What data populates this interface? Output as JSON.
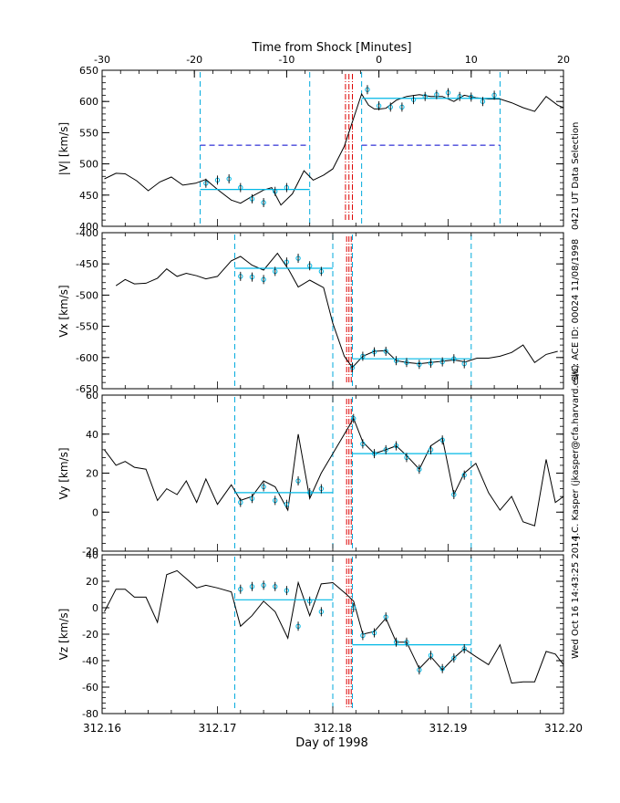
{
  "chart_data": {
    "type": "line",
    "top_axis": {
      "label": "Time from Shock [Minutes]",
      "range": [
        -30,
        20
      ],
      "ticks": [
        -30,
        -20,
        -10,
        0,
        10,
        20
      ]
    },
    "x_axis": {
      "label": "Day of 1998",
      "range": [
        312.16,
        312.2
      ],
      "ticks": [
        "312.16",
        "312.17",
        "312.18",
        "312.19",
        "312.20"
      ],
      "minor_step": 0.002
    },
    "side_labels": [
      "0421 UT Data Selection",
      "S/C: ACE ID: 00024 11/08/1998",
      "J.C. Kasper (jkasper@cfa.harvard.edu)",
      "Wed Oct 16 14:43:25 2014"
    ],
    "colors": {
      "data": "#000000",
      "fit": "#00b8e6",
      "window": "#00aadd",
      "shock": "#dd0000",
      "selection": "#0000cc"
    },
    "panels": [
      {
        "ylabel": "|V| [km/s]",
        "ylim": [
          400,
          650
        ],
        "yticks": [
          400,
          450,
          500,
          550,
          600,
          650
        ],
        "line": [
          [
            312.1602,
            476
          ],
          [
            312.1612,
            485
          ],
          [
            312.162,
            484
          ],
          [
            312.163,
            473
          ],
          [
            312.164,
            457
          ],
          [
            312.165,
            471
          ],
          [
            312.166,
            479
          ],
          [
            312.167,
            466
          ],
          [
            312.1681,
            469
          ],
          [
            312.169,
            475
          ],
          [
            312.17,
            459
          ],
          [
            312.1712,
            442
          ],
          [
            312.172,
            437
          ],
          [
            312.173,
            448
          ],
          [
            312.174,
            458
          ],
          [
            312.1747,
            462
          ],
          [
            312.1755,
            434
          ],
          [
            312.1765,
            452
          ],
          [
            312.1775,
            489
          ],
          [
            312.1783,
            474
          ],
          [
            312.1792,
            482
          ],
          [
            312.18,
            492
          ],
          [
            312.181,
            528
          ],
          [
            312.1825,
            612
          ],
          [
            312.1831,
            594
          ],
          [
            312.1836,
            588
          ],
          [
            312.1841,
            588
          ],
          [
            312.1846,
            589
          ],
          [
            312.1855,
            602
          ],
          [
            312.1864,
            608
          ],
          [
            312.1875,
            611
          ],
          [
            312.1885,
            608
          ],
          [
            312.1895,
            608
          ],
          [
            312.1905,
            600
          ],
          [
            312.1914,
            610
          ],
          [
            312.1924,
            606
          ],
          [
            312.1935,
            604
          ],
          [
            312.1945,
            604
          ],
          [
            312.1955,
            598
          ],
          [
            312.1965,
            590
          ],
          [
            312.1975,
            584
          ],
          [
            312.1985,
            608
          ],
          [
            312.1995,
            594
          ],
          [
            312.2,
            590
          ]
        ],
        "points": [
          [
            312.169,
            469
          ],
          [
            312.17,
            474
          ],
          [
            312.171,
            476
          ],
          [
            312.172,
            462
          ],
          [
            312.173,
            444
          ],
          [
            312.174,
            438
          ],
          [
            312.175,
            456
          ],
          [
            312.176,
            462
          ],
          [
            312.183,
            619
          ],
          [
            312.184,
            593
          ],
          [
            312.185,
            591
          ],
          [
            312.186,
            591
          ],
          [
            312.187,
            603
          ],
          [
            312.188,
            608
          ],
          [
            312.189,
            611
          ],
          [
            312.19,
            614
          ],
          [
            312.191,
            608
          ],
          [
            312.192,
            607
          ],
          [
            312.193,
            600
          ],
          [
            312.194,
            610
          ]
        ],
        "fits": [
          [
            312.1685,
            312.178,
            459
          ],
          [
            312.1825,
            312.1945,
            605
          ]
        ],
        "selection": [
          [
            312.1685,
            312.178,
            530
          ],
          [
            312.1825,
            312.1945,
            530
          ]
        ],
        "windows": [
          312.1685,
          312.178,
          312.1825,
          312.1945
        ],
        "shock": [
          312.1811,
          312.1814,
          312.1817
        ]
      },
      {
        "ylabel": "Vx [km/s]",
        "ylim": [
          -650,
          -400
        ],
        "yticks": [
          -650,
          -600,
          -550,
          -500,
          -450,
          -400
        ],
        "line": [
          [
            312.1612,
            -485
          ],
          [
            312.162,
            -475
          ],
          [
            312.1628,
            -482
          ],
          [
            312.1638,
            -481
          ],
          [
            312.1648,
            -473
          ],
          [
            312.1656,
            -458
          ],
          [
            312.1665,
            -470
          ],
          [
            312.1673,
            -465
          ],
          [
            312.1682,
            -469
          ],
          [
            312.169,
            -474
          ],
          [
            312.17,
            -470
          ],
          [
            312.1712,
            -445
          ],
          [
            312.172,
            -438
          ],
          [
            312.173,
            -452
          ],
          [
            312.174,
            -460
          ],
          [
            312.1752,
            -433
          ],
          [
            312.1762,
            -460
          ],
          [
            312.177,
            -487
          ],
          [
            312.178,
            -476
          ],
          [
            312.1792,
            -488
          ],
          [
            312.18,
            -545
          ],
          [
            312.181,
            -598
          ],
          [
            312.1817,
            -616
          ],
          [
            312.1826,
            -598
          ],
          [
            312.1836,
            -590
          ],
          [
            312.1846,
            -589
          ],
          [
            312.1855,
            -605
          ],
          [
            312.1864,
            -608
          ],
          [
            312.1875,
            -610
          ],
          [
            312.1885,
            -608
          ],
          [
            312.1895,
            -606
          ],
          [
            312.1905,
            -604
          ],
          [
            312.1915,
            -607
          ],
          [
            312.1925,
            -601
          ],
          [
            312.1935,
            -601
          ],
          [
            312.1945,
            -598
          ],
          [
            312.1955,
            -592
          ],
          [
            312.1965,
            -580
          ],
          [
            312.1975,
            -608
          ],
          [
            312.1985,
            -595
          ],
          [
            312.1995,
            -590
          ]
        ],
        "points": [
          [
            312.172,
            -470
          ],
          [
            312.173,
            -471
          ],
          [
            312.174,
            -475
          ],
          [
            312.175,
            -462
          ],
          [
            312.176,
            -447
          ],
          [
            312.177,
            -441
          ],
          [
            312.178,
            -453
          ],
          [
            312.179,
            -462
          ],
          [
            312.1817,
            -616
          ],
          [
            312.1826,
            -598
          ],
          [
            312.1836,
            -591
          ],
          [
            312.1846,
            -590
          ],
          [
            312.1855,
            -605
          ],
          [
            312.1864,
            -608
          ],
          [
            312.1875,
            -611
          ],
          [
            312.1885,
            -609
          ],
          [
            312.1895,
            -607
          ],
          [
            312.1905,
            -602
          ],
          [
            312.1914,
            -610
          ]
        ],
        "fits": [
          [
            312.1715,
            312.18,
            -457
          ],
          [
            312.1817,
            312.192,
            -602
          ]
        ],
        "selection": [],
        "windows": [
          312.1715,
          312.18,
          312.1817,
          312.192
        ],
        "shock": [
          312.1812,
          312.1814,
          312.1816
        ]
      },
      {
        "ylabel": "Vy [km/s]",
        "ylim": [
          -20,
          60
        ],
        "yticks": [
          -20,
          0,
          20,
          40,
          60
        ],
        "line": [
          [
            312.1602,
            32
          ],
          [
            312.1612,
            24
          ],
          [
            312.162,
            26
          ],
          [
            312.1628,
            23
          ],
          [
            312.1638,
            22
          ],
          [
            312.1648,
            6
          ],
          [
            312.1656,
            12
          ],
          [
            312.1665,
            9
          ],
          [
            312.1673,
            16
          ],
          [
            312.1682,
            5
          ],
          [
            312.169,
            17
          ],
          [
            312.17,
            4
          ],
          [
            312.1712,
            14
          ],
          [
            312.172,
            6
          ],
          [
            312.173,
            8
          ],
          [
            312.174,
            16
          ],
          [
            312.175,
            13
          ],
          [
            312.1761,
            1
          ],
          [
            312.177,
            40
          ],
          [
            312.178,
            7
          ],
          [
            312.179,
            20
          ],
          [
            312.18,
            30
          ],
          [
            312.1812,
            42
          ],
          [
            312.1818,
            48
          ],
          [
            312.1826,
            36
          ],
          [
            312.1836,
            30
          ],
          [
            312.1846,
            32
          ],
          [
            312.1855,
            34
          ],
          [
            312.1864,
            29
          ],
          [
            312.1875,
            22
          ],
          [
            312.1885,
            34
          ],
          [
            312.1895,
            38
          ],
          [
            312.1905,
            9
          ],
          [
            312.1914,
            20
          ],
          [
            312.1924,
            25
          ],
          [
            312.1935,
            10
          ],
          [
            312.1945,
            1
          ],
          [
            312.1955,
            8
          ],
          [
            312.1965,
            -5
          ],
          [
            312.1975,
            -7
          ],
          [
            312.1985,
            27
          ],
          [
            312.1993,
            5
          ],
          [
            312.2,
            8
          ]
        ],
        "points": [
          [
            312.172,
            5
          ],
          [
            312.173,
            7
          ],
          [
            312.174,
            13
          ],
          [
            312.175,
            6
          ],
          [
            312.176,
            4
          ],
          [
            312.177,
            16
          ],
          [
            312.178,
            10
          ],
          [
            312.179,
            12
          ],
          [
            312.1818,
            48
          ],
          [
            312.1826,
            35
          ],
          [
            312.1836,
            30
          ],
          [
            312.1846,
            32
          ],
          [
            312.1855,
            34
          ],
          [
            312.1864,
            28
          ],
          [
            312.1875,
            22
          ],
          [
            312.1885,
            32
          ],
          [
            312.1895,
            37
          ],
          [
            312.1905,
            9
          ],
          [
            312.1914,
            19
          ]
        ],
        "fits": [
          [
            312.1715,
            312.18,
            10
          ],
          [
            312.1817,
            312.192,
            30
          ]
        ],
        "selection": [],
        "windows": [
          312.1715,
          312.18,
          312.1817,
          312.192
        ],
        "shock": [
          312.1812,
          312.1814,
          312.1816
        ]
      },
      {
        "ylabel": "Vz [km/s]",
        "ylim": [
          -80,
          40
        ],
        "yticks": [
          -80,
          -60,
          -40,
          -20,
          0,
          20,
          40
        ],
        "line": [
          [
            312.1602,
            -3
          ],
          [
            312.1612,
            14
          ],
          [
            312.162,
            14
          ],
          [
            312.1628,
            8
          ],
          [
            312.1638,
            8
          ],
          [
            312.1648,
            -11
          ],
          [
            312.1656,
            25
          ],
          [
            312.1665,
            28
          ],
          [
            312.1673,
            22
          ],
          [
            312.1682,
            15
          ],
          [
            312.169,
            17
          ],
          [
            312.17,
            15
          ],
          [
            312.1712,
            12
          ],
          [
            312.172,
            -14
          ],
          [
            312.173,
            -6
          ],
          [
            312.174,
            5
          ],
          [
            312.175,
            -3
          ],
          [
            312.1761,
            -23
          ],
          [
            312.177,
            19
          ],
          [
            312.178,
            -6
          ],
          [
            312.179,
            18
          ],
          [
            312.18,
            19
          ],
          [
            312.1812,
            10
          ],
          [
            312.1818,
            5
          ],
          [
            312.1826,
            -20
          ],
          [
            312.1836,
            -18
          ],
          [
            312.1846,
            -8
          ],
          [
            312.1855,
            -26
          ],
          [
            312.1864,
            -26
          ],
          [
            312.1875,
            -46
          ],
          [
            312.1885,
            -37
          ],
          [
            312.1895,
            -47
          ],
          [
            312.1905,
            -38
          ],
          [
            312.1914,
            -31
          ],
          [
            312.1924,
            -37
          ],
          [
            312.1935,
            -43
          ],
          [
            312.1945,
            -28
          ],
          [
            312.1955,
            -57
          ],
          [
            312.1965,
            -56
          ],
          [
            312.1975,
            -56
          ],
          [
            312.1985,
            -33
          ],
          [
            312.1993,
            -35
          ],
          [
            312.2,
            -43
          ]
        ],
        "points": [
          [
            312.172,
            14
          ],
          [
            312.173,
            16
          ],
          [
            312.174,
            17
          ],
          [
            312.175,
            16
          ],
          [
            312.176,
            13
          ],
          [
            312.177,
            -14
          ],
          [
            312.178,
            5
          ],
          [
            312.179,
            -3
          ],
          [
            312.1818,
            0
          ],
          [
            312.1826,
            -21
          ],
          [
            312.1836,
            -19
          ],
          [
            312.1846,
            -7
          ],
          [
            312.1855,
            -26
          ],
          [
            312.1864,
            -26
          ],
          [
            312.1875,
            -47
          ],
          [
            312.1885,
            -36
          ],
          [
            312.1895,
            -46
          ],
          [
            312.1905,
            -38
          ],
          [
            312.1914,
            -31
          ]
        ],
        "fits": [
          [
            312.1715,
            312.18,
            6
          ],
          [
            312.1817,
            312.192,
            -28
          ]
        ],
        "selection": [],
        "windows": [
          312.1715,
          312.18,
          312.1817,
          312.192
        ],
        "shock": [
          312.1812,
          312.1814,
          312.1816
        ]
      }
    ]
  }
}
